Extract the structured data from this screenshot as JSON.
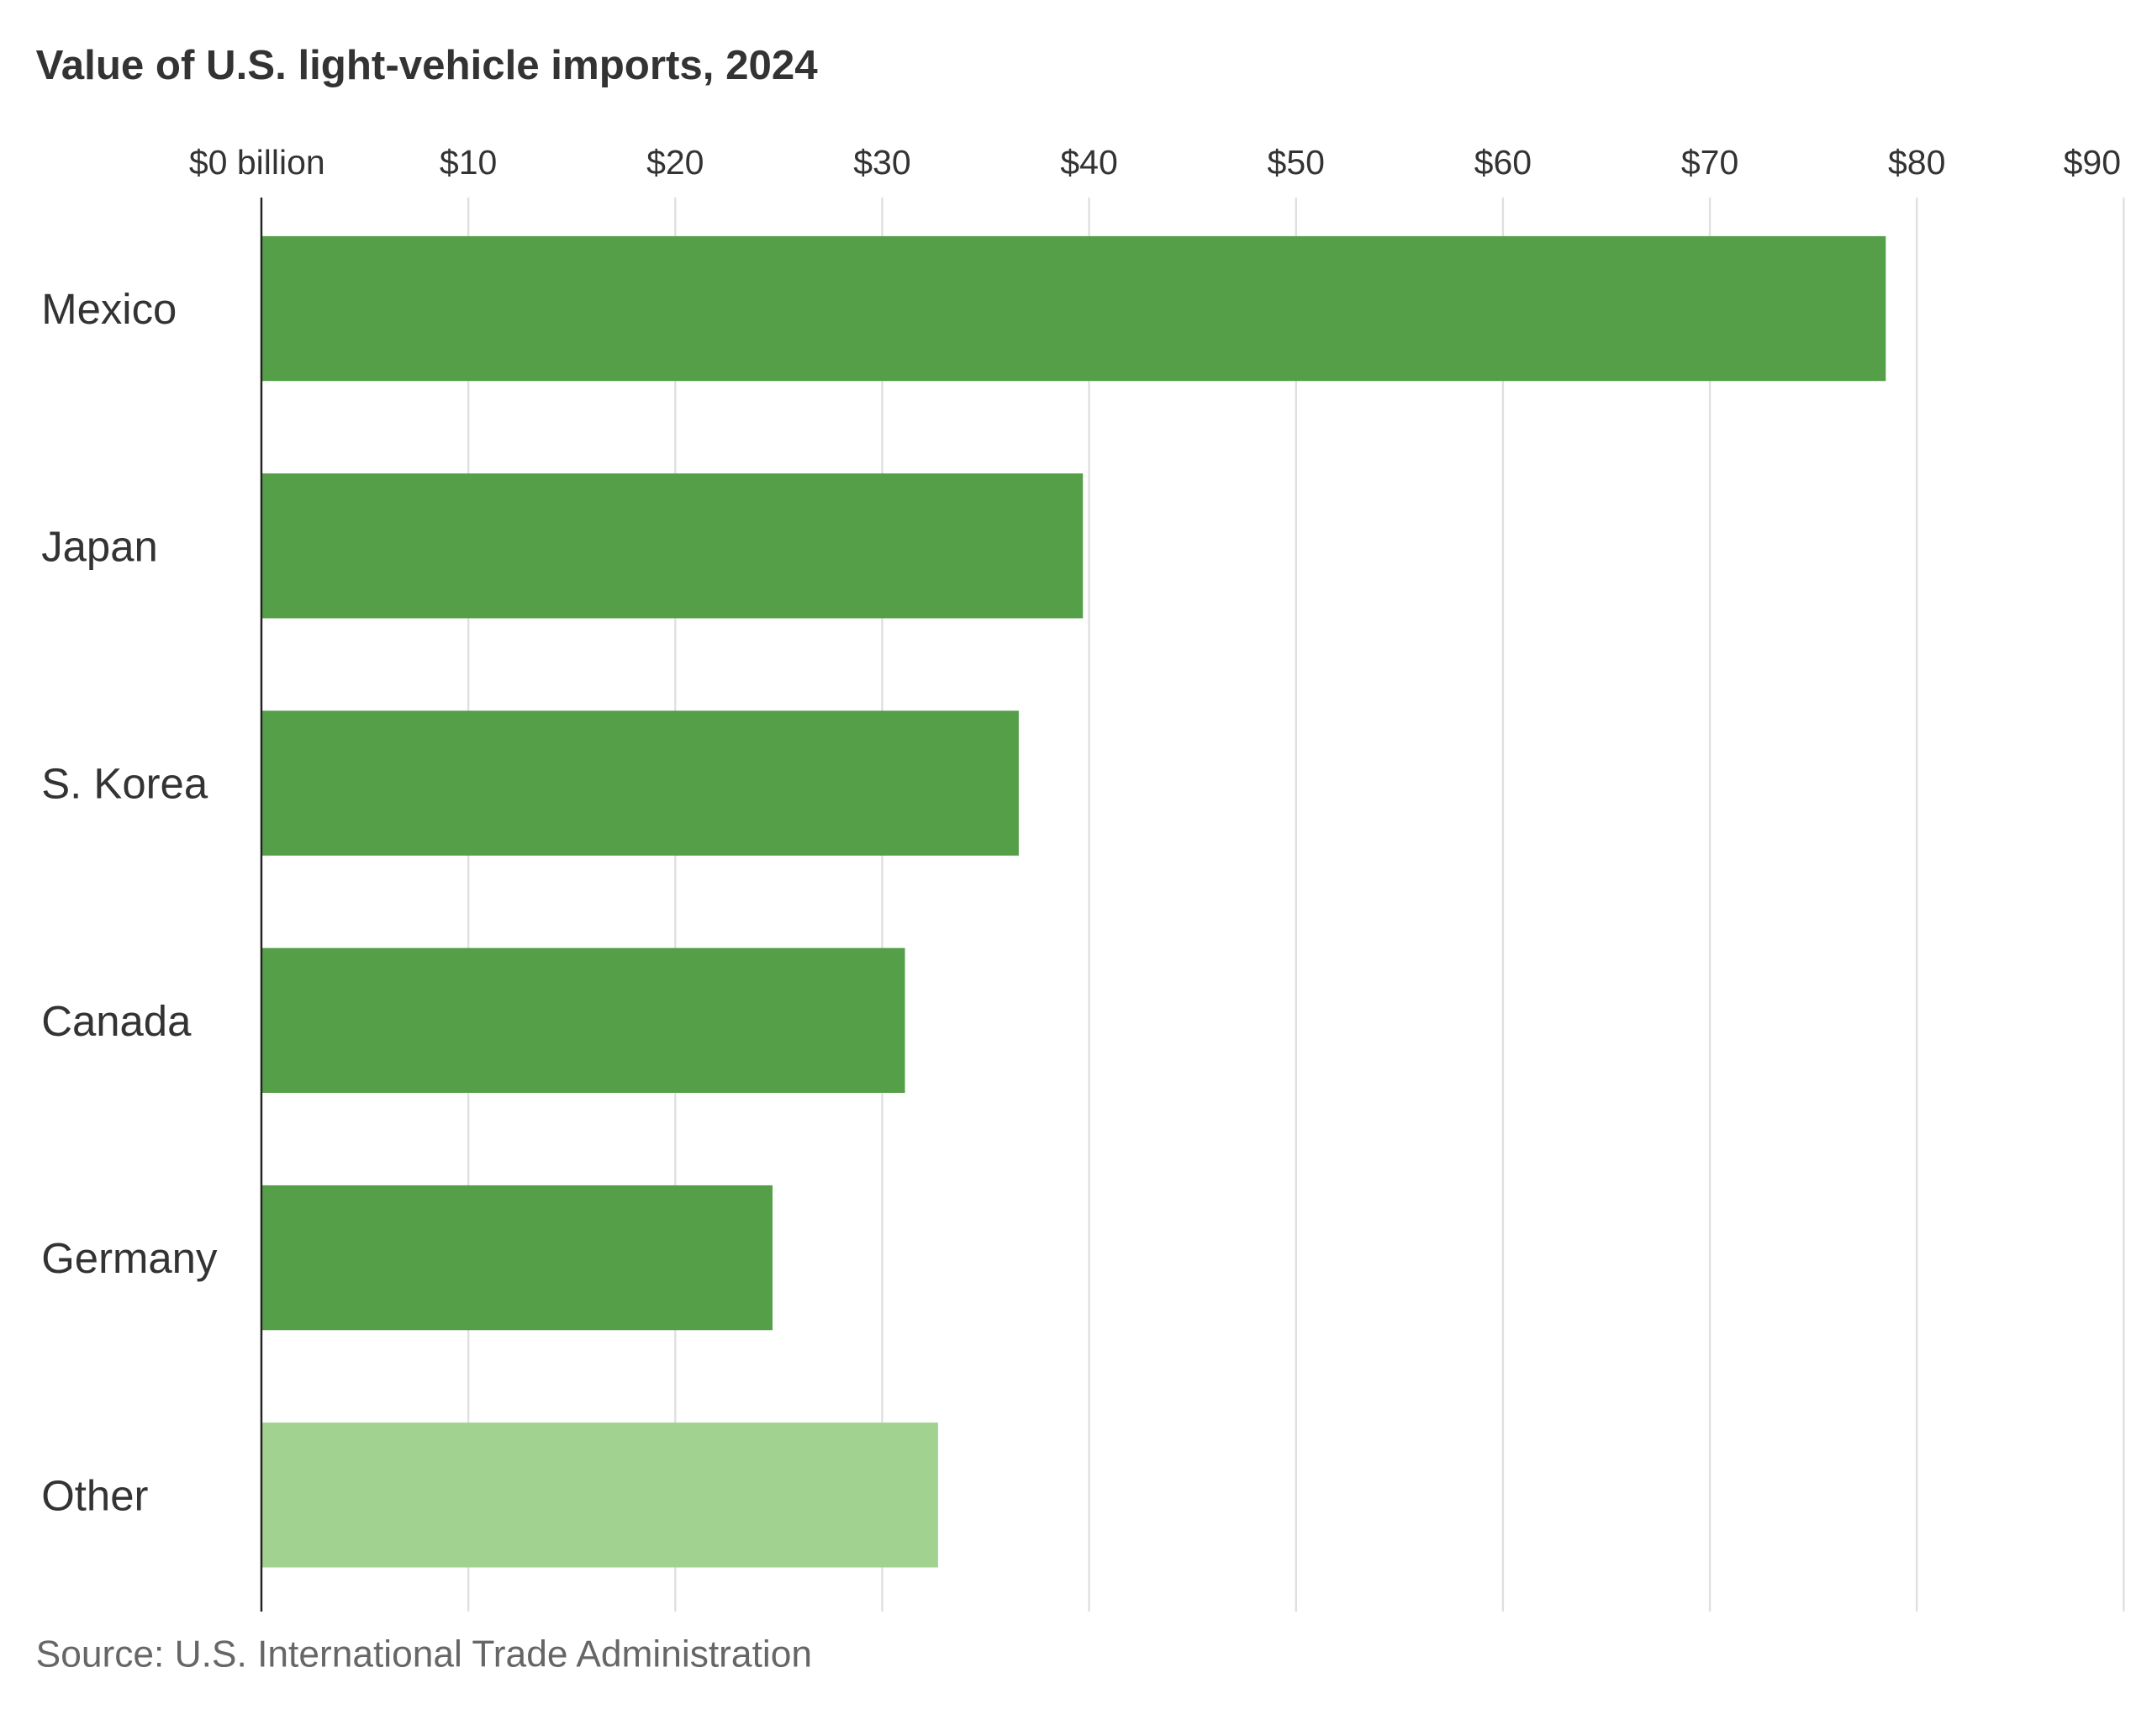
{
  "chart_data": {
    "type": "bar",
    "orientation": "horizontal",
    "title": "Value of U.S. light-vehicle imports, 2024",
    "categories": [
      "Mexico",
      "Japan",
      "S. Korea",
      "Canada",
      "Germany",
      "Other"
    ],
    "values": [
      78.5,
      39.7,
      36.6,
      31.1,
      24.7,
      32.7
    ],
    "xlim": [
      0,
      90
    ],
    "x_ticks": [
      0,
      10,
      20,
      30,
      40,
      50,
      60,
      70,
      80,
      90
    ],
    "x_tick_labels": [
      "$0 billion",
      "$10",
      "$20",
      "$30",
      "$40",
      "$50",
      "$60",
      "$70",
      "$80",
      "$90"
    ],
    "x_axis_position": "top",
    "grid": true,
    "colors": {
      "primary": "#549f48",
      "other": "#a2d290",
      "grid": "#e0e0e0",
      "axis": "#222222"
    },
    "source": "Source: U.S. International Trade Administration"
  }
}
